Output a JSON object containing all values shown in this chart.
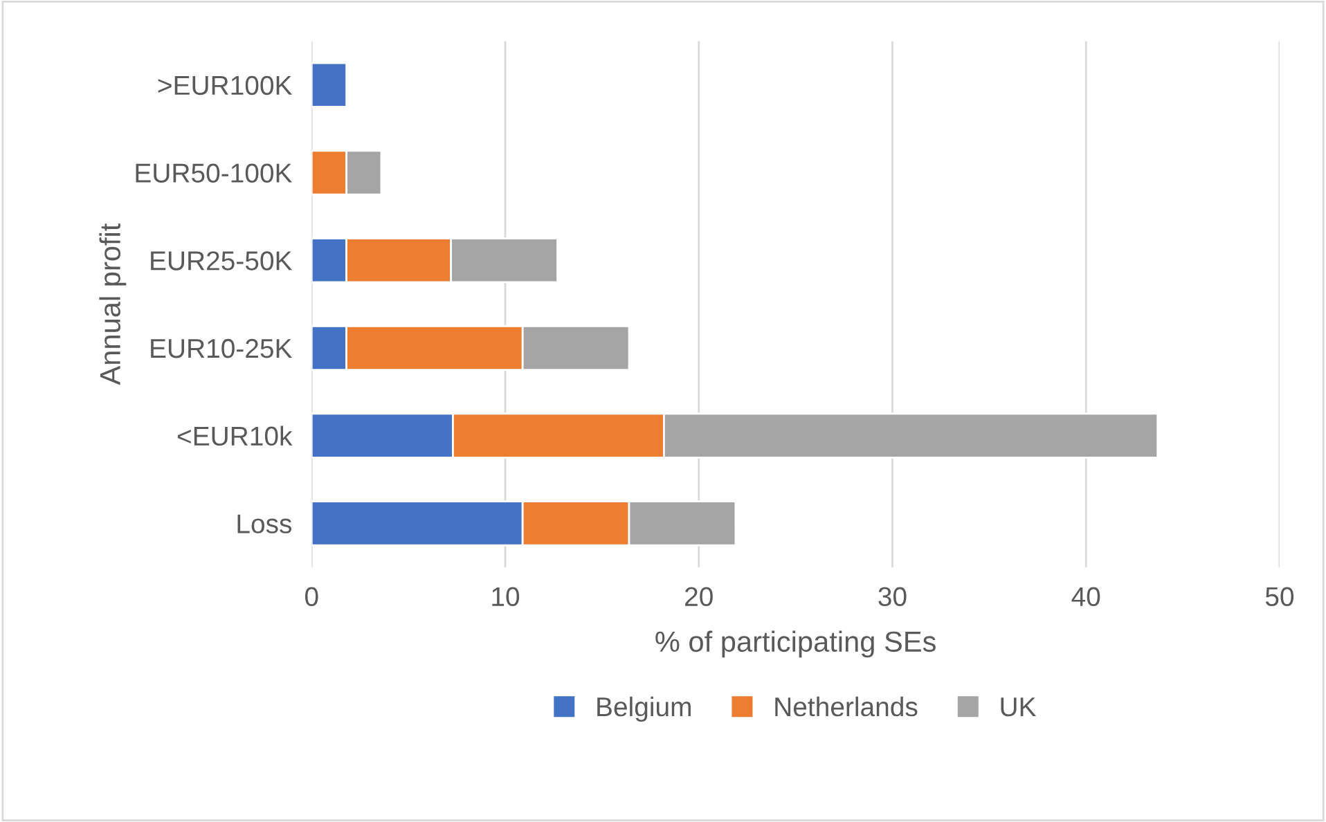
{
  "chart_data": {
    "type": "bar",
    "orientation": "horizontal",
    "stacked": true,
    "categories": [
      ">EUR100K",
      "EUR50-100K",
      "EUR25-50K",
      "EUR10-25K",
      "<EUR10k",
      "Loss"
    ],
    "series": [
      {
        "name": "Belgium",
        "color": "#4472c4",
        "values": [
          1.8,
          null,
          1.8,
          1.8,
          7.3,
          10.9
        ]
      },
      {
        "name": "Netherlands",
        "color": "#ed7d31",
        "values": [
          null,
          1.8,
          5.4,
          9.1,
          10.9,
          5.5
        ]
      },
      {
        "name": "UK",
        "color": "#a5a5a5",
        "values": [
          null,
          1.8,
          5.5,
          5.5,
          25.5,
          5.5
        ]
      }
    ],
    "xlabel": "% of participating SEs",
    "ylabel": "Annual profit",
    "xlim": [
      0,
      50
    ],
    "xticks": [
      0,
      10,
      20,
      30,
      40,
      50
    ],
    "grid": "x",
    "legend": "bottom"
  }
}
